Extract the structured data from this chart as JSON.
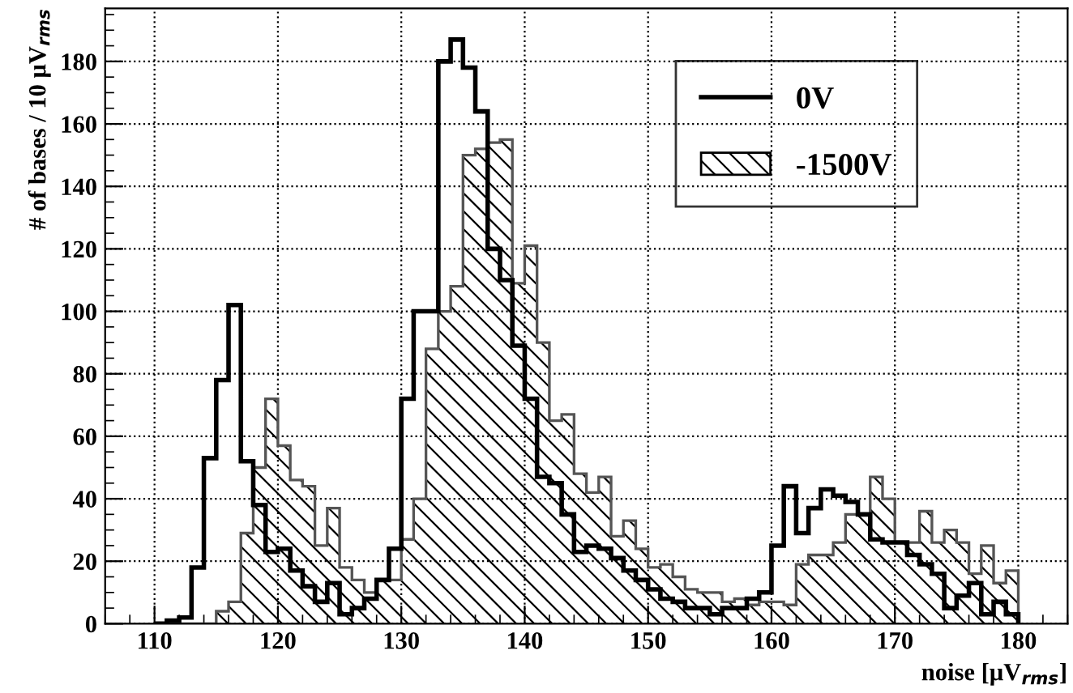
{
  "chart_data": {
    "type": "histogram",
    "xlabel": "noise [μV$_{rms}$]",
    "ylabel": "# of bases / 10 μV$_{rms}$",
    "bins": [
      110,
      111,
      112,
      113,
      114,
      115,
      116,
      117,
      118,
      119,
      120,
      121,
      122,
      123,
      124,
      125,
      126,
      127,
      128,
      129,
      130,
      131,
      132,
      133,
      134,
      135,
      136,
      137,
      138,
      139,
      140,
      141,
      142,
      143,
      144,
      145,
      146,
      147,
      148,
      149,
      150,
      151,
      152,
      153,
      154,
      155,
      156,
      157,
      158,
      159,
      160,
      161,
      162,
      163,
      164,
      165,
      166,
      167,
      168,
      169,
      170,
      171,
      172,
      173,
      174,
      175,
      176,
      177,
      178,
      179,
      180
    ],
    "series": [
      {
        "name": "0V",
        "color": "#000000",
        "values": [
          0,
          1,
          2,
          18,
          53,
          78,
          102,
          52,
          38,
          23,
          24,
          17,
          12,
          7,
          13,
          3,
          5,
          8,
          14,
          24,
          72,
          100,
          100,
          180,
          187,
          178,
          164,
          120,
          110,
          89,
          72,
          47,
          45,
          35,
          23,
          25,
          24,
          21,
          17,
          14,
          11,
          8,
          7,
          5,
          5,
          3,
          5,
          5,
          8,
          10,
          25,
          44,
          29,
          37,
          43,
          41,
          39,
          35,
          27,
          26,
          26,
          22,
          19,
          16,
          5,
          9,
          13,
          3,
          7,
          3
        ]
      },
      {
        "name": "-1500V",
        "color": "#000000",
        "values": [
          0,
          0,
          0,
          0,
          0,
          4,
          7,
          29,
          50,
          72,
          57,
          46,
          44,
          25,
          37,
          18,
          14,
          10,
          14,
          14,
          27,
          40,
          88,
          100,
          108,
          150,
          152,
          154,
          155,
          109,
          121,
          90,
          65,
          67,
          48,
          42,
          47,
          28,
          33,
          24,
          18,
          19,
          15,
          11,
          10,
          10,
          7,
          8,
          6,
          7,
          7,
          6,
          19,
          22,
          22,
          26,
          35,
          35,
          47,
          40,
          26,
          26,
          36,
          26,
          30,
          26,
          16,
          25,
          13,
          17
        ]
      }
    ],
    "xlim": [
      106,
      184
    ],
    "ylim": [
      0,
      197
    ],
    "xticks": [
      110,
      120,
      130,
      140,
      150,
      160,
      170,
      180
    ],
    "yticks": [
      0,
      20,
      40,
      60,
      80,
      100,
      120,
      140,
      160,
      180
    ],
    "grid": true,
    "legend": "top right"
  }
}
